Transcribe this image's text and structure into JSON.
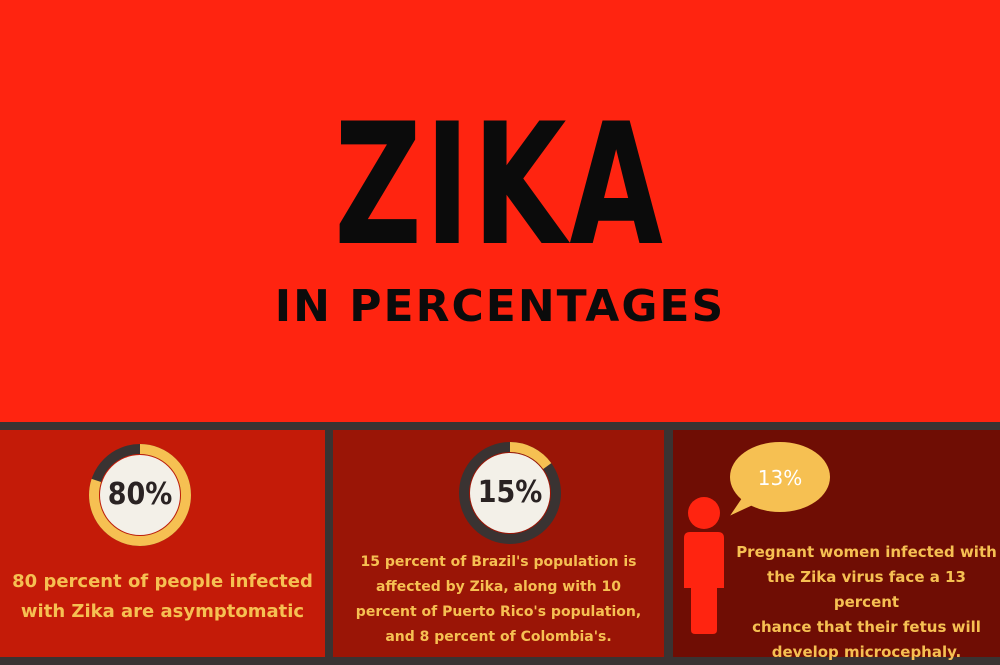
{
  "header": {
    "title": "ZIKA",
    "subtitle": "IN PERCENTAGES"
  },
  "stats": [
    {
      "percent_label": "80%",
      "value": 80,
      "caption_lines": [
        "80 percent of people infected",
        "with Zika are asymptomatic"
      ]
    },
    {
      "percent_label": "15%",
      "value": 15,
      "caption_lines": [
        "15 percent of Brazil's population is",
        "affected by Zika, along with 10",
        "percent of Puerto Rico's population,",
        "and 8 percent of Colombia's."
      ]
    },
    {
      "percent_label": "13%",
      "value": 13,
      "caption_lines": [
        "Pregnant women infected with",
        "the Zika virus face a 13 percent",
        "chance that their fetus will",
        "develop microcephaly."
      ]
    }
  ],
  "colors": {
    "hero_bg": "#ff2410",
    "panel1_bg": "#c41b08",
    "panel2_bg": "#9a1506",
    "panel3_bg": "#6f0d04",
    "accent": "#f6c052",
    "ring_track": "#3a3332",
    "text_dark": "#0b0b0b"
  },
  "icons": {
    "panel3": "person-icon",
    "bubble": "speech-bubble-icon"
  }
}
